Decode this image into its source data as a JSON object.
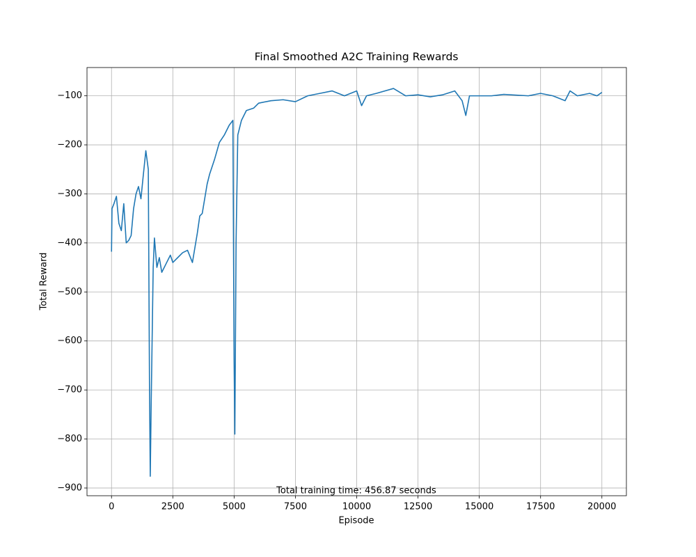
{
  "chart_data": {
    "type": "line",
    "title": "Final Smoothed A2C Training Rewards",
    "x_label": "Episode",
    "y_label": "Total Reward",
    "annotation": "Total training time: 456.87 seconds",
    "color": "#1f77b4",
    "grid": true,
    "x": [
      0,
      20,
      100,
      200,
      300,
      400,
      500,
      600,
      700,
      800,
      900,
      1000,
      1100,
      1200,
      1300,
      1400,
      1500,
      1550,
      1580,
      1620,
      1700,
      1750,
      1850,
      1950,
      2050,
      2200,
      2400,
      2500,
      2700,
      2900,
      3100,
      3300,
      3500,
      3600,
      3700,
      3900,
      4000,
      4200,
      4400,
      4600,
      4800,
      4950,
      5000,
      5030,
      5080,
      5150,
      5300,
      5500,
      5800,
      6000,
      6500,
      7000,
      7500,
      8000,
      8500,
      9000,
      9500,
      10000,
      10200,
      10400,
      10800,
      11500,
      12000,
      12500,
      13000,
      13500,
      14000,
      14300,
      14450,
      14600,
      15000,
      15500,
      16000,
      17000,
      17500,
      18000,
      18500,
      18700,
      19000,
      19500,
      19800,
      20000
    ],
    "values": [
      -418,
      -330,
      -320,
      -305,
      -360,
      -375,
      -320,
      -400,
      -395,
      -385,
      -330,
      -300,
      -285,
      -310,
      -260,
      -212,
      -250,
      -700,
      -876,
      -720,
      -450,
      -390,
      -450,
      -430,
      -460,
      -445,
      -425,
      -440,
      -430,
      -420,
      -415,
      -440,
      -380,
      -345,
      -340,
      -280,
      -260,
      -230,
      -195,
      -180,
      -160,
      -150,
      -640,
      -790,
      -400,
      -180,
      -150,
      -130,
      -125,
      -115,
      -110,
      -108,
      -112,
      -100,
      -95,
      -90,
      -100,
      -90,
      -120,
      -100,
      -95,
      -85,
      -100,
      -98,
      -102,
      -98,
      -90,
      -110,
      -140,
      -100,
      -100,
      -100,
      -97,
      -100,
      -95,
      -100,
      -110,
      -90,
      -100,
      -95,
      -100,
      -93
    ],
    "xlim": [
      -1000,
      21000
    ],
    "ylim": [
      -915.7,
      -42.3
    ],
    "xticks": [
      0,
      2500,
      5000,
      7500,
      10000,
      12500,
      15000,
      17500,
      20000
    ],
    "yticks": [
      {
        "value": -900,
        "label": "−900"
      },
      {
        "value": -800,
        "label": "−800"
      },
      {
        "value": -700,
        "label": "−700"
      },
      {
        "value": -600,
        "label": "−600"
      },
      {
        "value": -500,
        "label": "−500"
      },
      {
        "value": -400,
        "label": "−400"
      },
      {
        "value": -300,
        "label": "−300"
      },
      {
        "value": -200,
        "label": "−200"
      },
      {
        "value": -100,
        "label": "−100"
      }
    ]
  }
}
